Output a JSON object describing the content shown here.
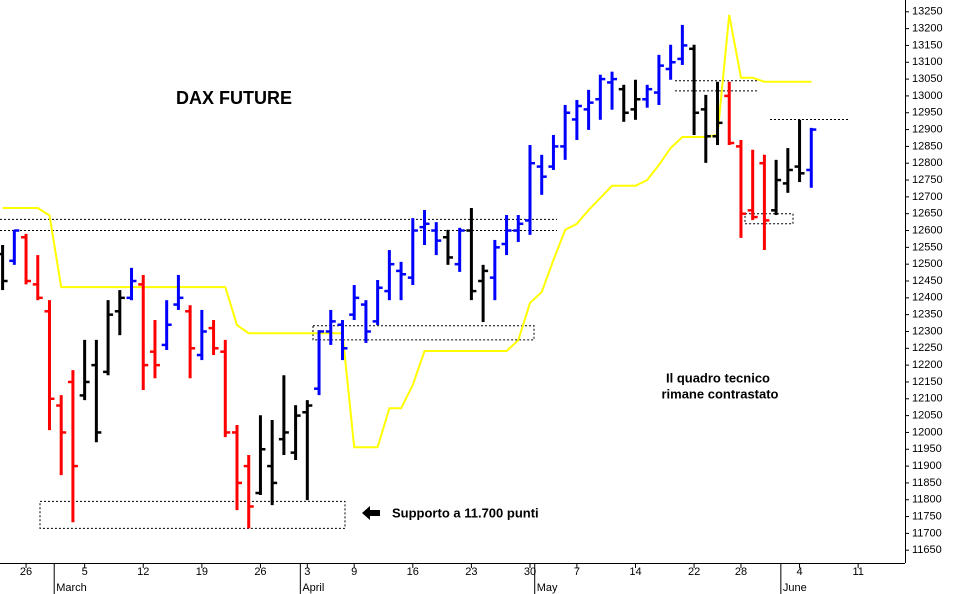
{
  "chart_data": {
    "type": "ohlc",
    "title": "DAX FUTURE",
    "annotations": [
      "Il quadro tecnico",
      "rimane contrastato",
      "Supporto a 11.700 punti"
    ],
    "categories": [
      null,
      null,
      "26",
      null,
      null,
      null,
      null,
      "5",
      null,
      null,
      null,
      null,
      "12",
      null,
      null,
      null,
      null,
      "19",
      null,
      null,
      null,
      null,
      "26",
      null,
      null,
      null,
      "3",
      null,
      null,
      null,
      "9",
      null,
      null,
      null,
      null,
      "16",
      null,
      null,
      null,
      null,
      "23",
      null,
      null,
      null,
      null,
      "30",
      null,
      null,
      null,
      "7",
      null,
      null,
      null,
      null,
      "14",
      null,
      null,
      null,
      null,
      "22",
      null,
      null,
      null,
      "28",
      null,
      null,
      null,
      null,
      "4",
      null,
      null,
      null,
      null,
      "11",
      null,
      null,
      null,
      null
    ],
    "months": [
      null,
      null,
      null,
      null,
      null,
      "March",
      null,
      null,
      null,
      null,
      null,
      null,
      null,
      null,
      null,
      null,
      null,
      null,
      null,
      null,
      null,
      null,
      null,
      null,
      null,
      null,
      "April",
      null,
      null,
      null,
      null,
      null,
      null,
      null,
      null,
      null,
      null,
      null,
      null,
      null,
      null,
      null,
      null,
      null,
      null,
      null,
      "May",
      null,
      null,
      null,
      null,
      null,
      null,
      null,
      null,
      null,
      null,
      null,
      null,
      null,
      null,
      null,
      null,
      null,
      null,
      null,
      null,
      "June",
      null,
      null,
      null,
      null,
      null,
      null,
      null,
      null,
      null,
      null
    ],
    "open": [
      12530,
      12510,
      12580,
      12440,
      12360,
      12080,
      12150,
      12110,
      12200,
      12180,
      12360,
      12400,
      12440,
      12240,
      12260,
      12380,
      12360,
      12230,
      12310,
      12240,
      12000,
      11900,
      11820,
      11900,
      11980,
      11940,
      12060,
      12130,
      12300,
      12320,
      12350,
      12380,
      12330,
      12420,
      12480,
      12460,
      12610,
      12600,
      12580,
      12500,
      12600,
      12450,
      12460,
      12560,
      12600,
      12630,
      12790,
      12790,
      12850,
      12930,
      12960,
      12990,
      13040,
      13020,
      12960,
      12990,
      13010,
      13080,
      13110,
      13140,
      12960,
      12880,
      13000,
      12850,
      12660,
      12800,
      12660,
      12740,
      12790,
      12780,
      null,
      null,
      null,
      null,
      null,
      null,
      null,
      null
    ],
    "high": [
      12557,
      12602,
      12590,
      12527,
      12393,
      12111,
      12185,
      12275,
      12275,
      12393,
      12423,
      12489,
      12468,
      12334,
      12393,
      12468,
      12378,
      12364,
      12334,
      12275,
      12022,
      11933,
      12051,
      12037,
      12170,
      12081,
      12096,
      12304,
      12364,
      12334,
      12438,
      12393,
      12453,
      12542,
      12507,
      12637,
      12661,
      12625,
      12602,
      12608,
      12667,
      12498,
      12572,
      12646,
      12646,
      12854,
      12825,
      12884,
      12973,
      12988,
      13018,
      13063,
      13072,
      13033,
      13048,
      13033,
      13122,
      13152,
      13211,
      13152,
      13003,
      13042,
      13042,
      12869,
      12840,
      12825,
      12810,
      12845,
      12929,
      12905,
      null,
      null,
      null,
      null,
      null,
      null,
      null,
      null
    ],
    "low": [
      12423,
      12498,
      12440,
      12393,
      12007,
      11873,
      11733,
      12096,
      11971,
      12170,
      12289,
      12393,
      12126,
      12161,
      12245,
      12364,
      12161,
      12215,
      12230,
      11986,
      11769,
      11715,
      11814,
      11784,
      11933,
      11918,
      11799,
      12111,
      12260,
      12215,
      12334,
      12266,
      12319,
      12393,
      12393,
      12438,
      12557,
      12527,
      12498,
      12477,
      12393,
      12328,
      12393,
      12527,
      12566,
      12587,
      12706,
      12780,
      12810,
      12869,
      12899,
      12929,
      12959,
      12923,
      12929,
      12965,
      12973,
      13048,
      13092,
      12884,
      12801,
      12854,
      12854,
      12578,
      12631,
      12542,
      12646,
      12712,
      12744,
      12727,
      null,
      null,
      null,
      null,
      null,
      null,
      null,
      null
    ],
    "close": [
      12450,
      12600,
      12450,
      12400,
      12100,
      12000,
      11900,
      12150,
      12000,
      12350,
      12400,
      12450,
      12200,
      12200,
      12320,
      12400,
      12250,
      12300,
      12250,
      12000,
      11850,
      11780,
      11950,
      11850,
      12000,
      12050,
      12080,
      12300,
      12330,
      12250,
      12400,
      12300,
      12430,
      12500,
      12470,
      12600,
      12620,
      12570,
      12520,
      12600,
      12420,
      12480,
      12550,
      12600,
      12620,
      12800,
      12760,
      12850,
      12950,
      12970,
      12980,
      13050,
      13050,
      12950,
      12990,
      13020,
      13090,
      13100,
      13150,
      12950,
      12880,
      12920,
      12860,
      12650,
      12640,
      12630,
      12750,
      12780,
      12770,
      12900,
      null,
      null,
      null,
      null,
      null,
      null,
      null,
      null
    ],
    "colors": [
      "#000000",
      "#0000ff",
      "#ff0000",
      "#ff0000",
      "#ff0000",
      "#ff0000",
      "#ff0000",
      "#000000",
      "#000000",
      "#000000",
      "#000000",
      "#0000ff",
      "#ff0000",
      "#ff0000",
      "#0000ff",
      "#0000ff",
      "#ff0000",
      "#0000ff",
      "#ff0000",
      "#ff0000",
      "#ff0000",
      "#ff0000",
      "#000000",
      "#000000",
      "#000000",
      "#000000",
      "#000000",
      "#0000ff",
      "#0000ff",
      "#0000ff",
      "#0000ff",
      "#0000ff",
      "#0000ff",
      "#0000ff",
      "#0000ff",
      "#0000ff",
      "#0000ff",
      "#0000ff",
      "#000000",
      "#0000ff",
      "#000000",
      "#000000",
      "#0000ff",
      "#0000ff",
      "#0000ff",
      "#0000ff",
      "#0000ff",
      "#0000ff",
      "#0000ff",
      "#0000ff",
      "#0000ff",
      "#0000ff",
      "#0000ff",
      "#000000",
      "#000000",
      "#0000ff",
      "#0000ff",
      "#0000ff",
      "#0000ff",
      "#000000",
      "#000000",
      "#000000",
      "#ff0000",
      "#ff0000",
      "#ff0000",
      "#ff0000",
      "#000000",
      "#000000",
      "#000000",
      "#0000ff",
      null,
      null,
      null,
      null,
      null,
      null,
      null,
      null
    ],
    "indicator": {
      "color": "#ffff00",
      "values": [
        12667,
        12667,
        12667,
        12667,
        12645,
        12432,
        12432,
        12432,
        12432,
        12432,
        12432,
        12432,
        12432,
        12432,
        12432,
        12432,
        12432,
        12432,
        12432,
        12432,
        12319,
        12295,
        12295,
        12295,
        12295,
        12295,
        12295,
        12295,
        12295,
        12295,
        11956,
        11956,
        11956,
        12072,
        12072,
        12141,
        12242,
        12242,
        12242,
        12242,
        12242,
        12242,
        12242,
        12242,
        12274,
        12385,
        12417,
        12512,
        12602,
        12620,
        12661,
        12697,
        12733,
        12733,
        12733,
        12750,
        12795,
        12845,
        12878,
        12878,
        12878,
        12884,
        13241,
        13054,
        13054,
        13042,
        13042,
        13042,
        13042,
        13042,
        null,
        null,
        null,
        null,
        null,
        null,
        null,
        null
      ]
    },
    "zones": [
      {
        "low": 12600,
        "high": 12633
      },
      {
        "low": 12275,
        "high": 12317
      },
      {
        "low": 11715,
        "high": 11795
      },
      {
        "low": 13015,
        "high": 13045
      },
      {
        "low": 12930,
        "high": 12930
      },
      {
        "low": 12620,
        "high": 12650
      }
    ],
    "ylim": [
      11615,
      13285
    ],
    "yticks": [
      11650,
      11700,
      11750,
      11800,
      11850,
      11900,
      11950,
      12000,
      12050,
      12100,
      12150,
      12200,
      12250,
      12300,
      12350,
      12400,
      12450,
      12500,
      12550,
      12600,
      12650,
      12700,
      12750,
      12800,
      12850,
      12900,
      12950,
      13000,
      13050,
      13100,
      13150,
      13200,
      13250
    ]
  }
}
